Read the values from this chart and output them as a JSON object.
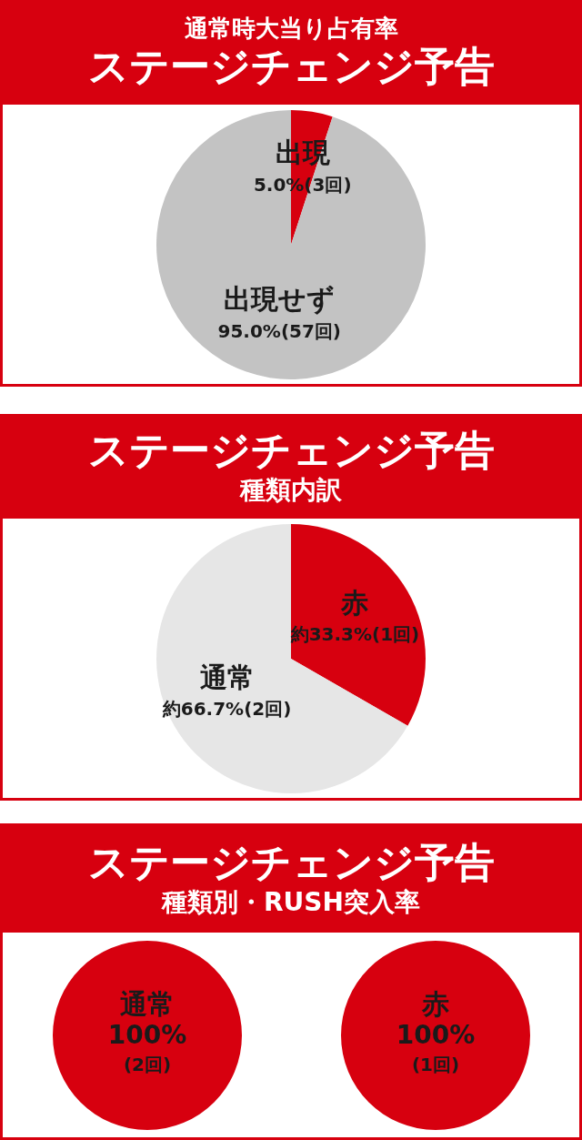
{
  "chart_data": [
    {
      "type": "pie",
      "title": "通常時大当り占有率",
      "subtitle": "ステージチェンジ予告",
      "categories": [
        "出現",
        "出現せず"
      ],
      "values": [
        5.0,
        95.0
      ],
      "colors": [
        "#d7000f",
        "#c3c3c3"
      ],
      "value_labels": [
        "5.0%(3回)",
        "95.0%(57回)"
      ]
    },
    {
      "type": "pie",
      "title": "ステージチェンジ予告",
      "subtitle": "種類内訳",
      "categories": [
        "赤",
        "通常"
      ],
      "values": [
        33.3,
        66.7
      ],
      "colors": [
        "#d7000f",
        "#e6e6e6"
      ],
      "value_labels": [
        "約33.3%(1回)",
        "約66.7%(2回)"
      ]
    },
    {
      "type": "pie",
      "title": "ステージチェンジ予告",
      "subtitle": "種類別・RUSH突入率",
      "categories": [
        "通常"
      ],
      "values": [
        100
      ],
      "colors": [
        "#d7000f"
      ],
      "value_labels": [
        "100%\n(2回)"
      ]
    },
    {
      "type": "pie",
      "categories": [
        "赤"
      ],
      "values": [
        100
      ],
      "colors": [
        "#d7000f"
      ],
      "value_labels": [
        "100%\n(1回)"
      ]
    }
  ]
}
